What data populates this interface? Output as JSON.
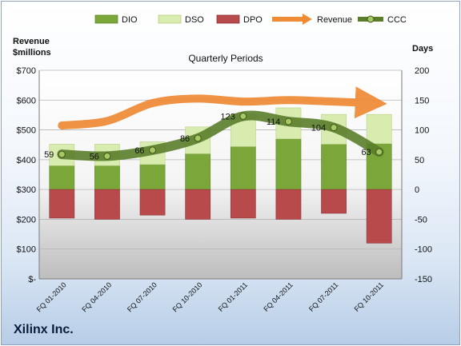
{
  "company": "Xilinx Inc.",
  "chart_data": {
    "type": "bar",
    "title": "Quarterly Periods",
    "ylabel_left": "Revenue $millions",
    "ylabel_right": "Days",
    "categories": [
      "FQ 01-2010",
      "FQ 04-2010",
      "FQ 07-2010",
      "FQ 10-2010",
      "FQ 01-2011",
      "FQ 04-2011",
      "FQ 07-2011",
      "FQ 10-2011"
    ],
    "left_axis": {
      "ticks": [
        "$-",
        "$100",
        "$200",
        "$300",
        "$400",
        "$500",
        "$600",
        "$700"
      ],
      "range": [
        0,
        700
      ]
    },
    "right_axis": {
      "ticks": [
        "-150",
        "-100",
        "-50",
        "0",
        "50",
        "100",
        "150",
        "200"
      ],
      "range": [
        -150,
        200
      ]
    },
    "legend": [
      "DIO",
      "DSO",
      "DPO",
      "Revenue",
      "CCC"
    ],
    "legend_position": "top",
    "series": [
      {
        "name": "DIO",
        "axis": "right",
        "stacked": true,
        "color": "#7aa63a",
        "values": [
          40,
          40,
          42,
          60,
          72,
          85,
          76,
          77
        ]
      },
      {
        "name": "DSO",
        "axis": "right",
        "stacked": true,
        "color": "#d9ecb0",
        "values": [
          36,
          36,
          38,
          45,
          54,
          52,
          50,
          49
        ]
      },
      {
        "name": "DPO",
        "axis": "right",
        "stacked": true,
        "color": "#b84a4c",
        "values": [
          -48,
          -50,
          -43,
          -50,
          -48,
          -50,
          -40,
          -90
        ]
      },
      {
        "name": "Revenue",
        "axis": "left",
        "type": "line",
        "color": "#ef8a35",
        "values": [
          515,
          530,
          590,
          605,
          595,
          600,
          595,
          590
        ]
      },
      {
        "name": "CCC",
        "axis": "right",
        "type": "line",
        "color": "#5a7d2a",
        "values": [
          59,
          56,
          66,
          86,
          123,
          114,
          104,
          63
        ],
        "labels": [
          "59",
          "56",
          "66",
          "86",
          "123",
          "114",
          "104",
          "63"
        ]
      }
    ]
  }
}
